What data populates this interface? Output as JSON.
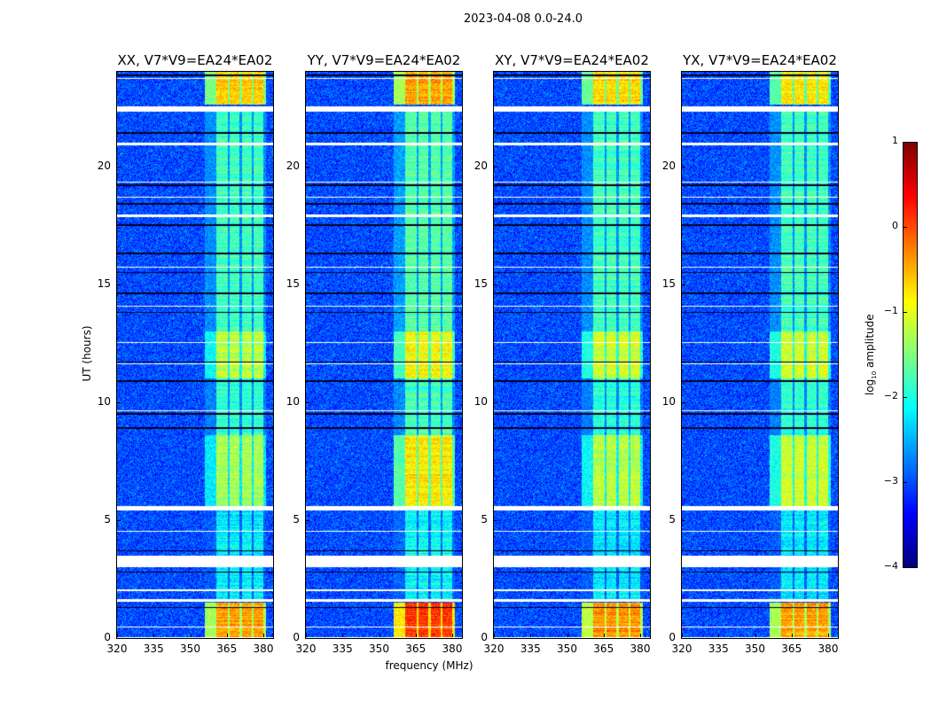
{
  "suptitle": "2023-04-08 0.0-24.0",
  "ylabel": "UT (hours)",
  "xlabel": "frequency (MHz)",
  "colorbar": {
    "label_main": "log",
    "label_sub": "10",
    "label_tail": " amplitude",
    "ticks": [
      "1",
      "0",
      "−1",
      "−2",
      "−3",
      "−4"
    ],
    "tick_values": [
      1,
      0,
      -1,
      -2,
      -3,
      -4
    ],
    "range": [
      -4,
      1
    ],
    "colormap": "jet"
  },
  "chart_data": {
    "type": "heatmap",
    "xlim": [
      320,
      384
    ],
    "ylim": [
      0,
      24
    ],
    "xticks": [
      320,
      335,
      350,
      365,
      380
    ],
    "xtick_labels": [
      "320",
      "335",
      "350",
      "365",
      "380"
    ],
    "yticks": [
      0,
      5,
      10,
      15,
      20
    ],
    "ytick_labels": [
      "0",
      "5",
      "10",
      "15",
      "20"
    ],
    "background_level": -3.0,
    "rfi_channels_mhz": [
      [
        360.7,
        365.5
      ],
      [
        366.2,
        370.2
      ],
      [
        371.3,
        375.3
      ],
      [
        376,
        380
      ]
    ],
    "flagged_hours": [
      [
        23.7,
        23.75
      ],
      [
        22.3,
        22.55
      ],
      [
        20.9,
        20.98
      ],
      [
        19.3,
        19.36
      ],
      [
        18.65,
        18.72
      ],
      [
        17.85,
        17.95
      ],
      [
        15.7,
        15.75
      ],
      [
        14.05,
        14.1
      ],
      [
        12.5,
        12.55
      ],
      [
        11.6,
        11.65
      ],
      [
        9.6,
        9.65
      ],
      [
        5.4,
        5.6
      ],
      [
        4.5,
        4.55
      ],
      [
        3.0,
        3.5
      ],
      [
        2.0,
        2.05
      ],
      [
        1.55,
        1.65
      ],
      [
        0.45,
        0.5
      ],
      [
        0,
        0.05
      ]
    ],
    "dropout_hours": [
      23.85,
      21.4,
      19.2,
      18.4,
      17.5,
      16.3,
      15.5,
      14.6,
      13.8,
      11.7,
      10.9,
      9.5,
      8.9,
      3.7,
      2.8,
      1.3
    ],
    "panels": [
      {
        "title": "XX, V7*V9=EA24*EA02",
        "rfi_blocks": [
          [
            22.6,
            24,
            -0.6
          ],
          [
            13,
            22.4,
            -1.8
          ],
          [
            11,
            13,
            -1.2
          ],
          [
            8.6,
            11,
            -1.9
          ],
          [
            5.6,
            8.6,
            -1.3
          ],
          [
            1.6,
            5.4,
            -2.2
          ],
          [
            0,
            1.5,
            -0.4
          ]
        ]
      },
      {
        "title": "YY, V7*V9=EA24*EA02",
        "rfi_blocks": [
          [
            22.6,
            24,
            -0.4
          ],
          [
            13,
            22.4,
            -1.7
          ],
          [
            11,
            13,
            -0.9
          ],
          [
            8.6,
            11,
            -1.8
          ],
          [
            5.6,
            8.6,
            -0.8
          ],
          [
            1.6,
            5.4,
            -2.1
          ],
          [
            0,
            1.5,
            0.1
          ]
        ]
      },
      {
        "title": "XY, V7*V9=EA24*EA02",
        "rfi_blocks": [
          [
            22.6,
            24,
            -0.7
          ],
          [
            13,
            22.4,
            -1.8
          ],
          [
            11,
            13,
            -1.1
          ],
          [
            8.6,
            11,
            -1.9
          ],
          [
            5.6,
            8.6,
            -1.2
          ],
          [
            1.6,
            5.4,
            -2.2
          ],
          [
            0,
            1.5,
            -0.3
          ]
        ]
      },
      {
        "title": "YX, V7*V9=EA24*EA02",
        "rfi_blocks": [
          [
            22.6,
            24,
            -0.8
          ],
          [
            13,
            22.4,
            -1.8
          ],
          [
            11,
            13,
            -1.1
          ],
          [
            8.6,
            11,
            -1.9
          ],
          [
            5.6,
            8.6,
            -1.1
          ],
          [
            1.6,
            5.4,
            -2.2
          ],
          [
            0,
            1.5,
            -0.4
          ]
        ]
      }
    ]
  }
}
